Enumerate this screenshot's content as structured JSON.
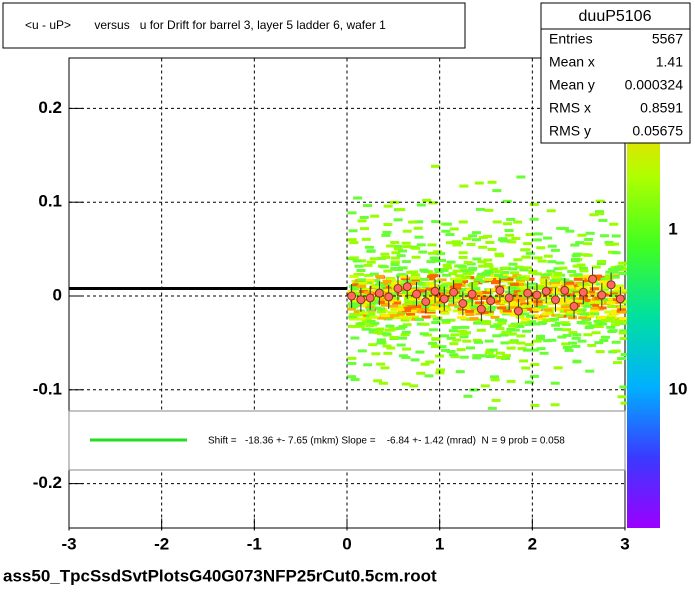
{
  "chart_data": {
    "type": "scatter",
    "title": "<u - uP>       versus   u for Drift for barrel 3, layer 5 ladder 6, wafer 1",
    "xlim": [
      -3,
      3
    ],
    "ylim": [
      -0.25,
      0.25
    ],
    "xticks": [
      -3,
      -2,
      -1,
      0,
      1,
      2,
      3
    ],
    "yticks": [
      -0.2,
      -0.1,
      0,
      0.1,
      0.2
    ],
    "grid": true,
    "palette_labels": [
      "1",
      "10"
    ],
    "stats": {
      "title": "duuP5106",
      "rows": [
        [
          "Entries",
          "5567"
        ],
        [
          "Mean x",
          "1.41"
        ],
        [
          "Mean y",
          "0.000324"
        ],
        [
          "RMS x",
          "0.8591"
        ],
        [
          "RMS y",
          "0.05675"
        ]
      ]
    },
    "fit_legend": "Shift =   -18.36 +- 7.65 (mkm) Slope =    -6.84 +- 1.42 (mrad)  N = 9 prob = 0.058",
    "footer": "ass50_TpcSsdSvtPlotsG40G073NFP25rCut0.5cm.root",
    "series": [
      {
        "color": "#000000",
        "x": [
          -3,
          0
        ],
        "values": [
          0.008,
          0.008
        ]
      },
      {
        "color": "#ff6666",
        "x": [
          0.05,
          0.15,
          0.25,
          0.35,
          0.45,
          0.55,
          0.65,
          0.75,
          0.85,
          0.95,
          1.05,
          1.15,
          1.25,
          1.35,
          1.45,
          1.55,
          1.65,
          1.75,
          1.85,
          1.95,
          2.05,
          2.15,
          2.25,
          2.35,
          2.45,
          2.55,
          2.65,
          2.75,
          2.85,
          2.95
        ],
        "values": [
          0.0,
          -0.004,
          -0.002,
          0.003,
          -0.001,
          0.008,
          0.01,
          0.002,
          -0.006,
          0.005,
          -0.003,
          0.004,
          -0.008,
          0.002,
          -0.014,
          -0.005,
          0.006,
          -0.002,
          -0.016,
          0.003,
          0.001,
          0.005,
          -0.004,
          0.006,
          -0.011,
          0.004,
          0.018,
          0.001,
          0.012,
          -0.003
        ]
      }
    ]
  }
}
